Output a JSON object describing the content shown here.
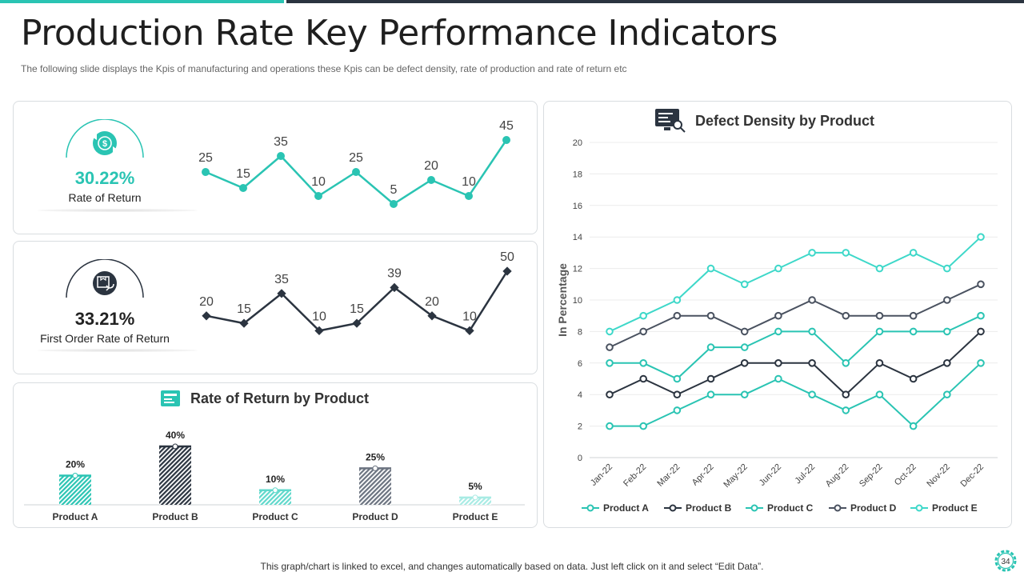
{
  "header": {
    "title": "Production Rate Key Performance Indicators",
    "subtitle": "The following  slide displays the Kpis of manufacturing  and operations these Kpis can be defect density, rate of production  and rate of return etc"
  },
  "kpis": [
    {
      "value": "30.22%",
      "label": "Rate of Return",
      "icon": "dollar-exchange-icon"
    },
    {
      "value": "33.21%",
      "label": "First Order Rate of Return",
      "icon": "box-return-icon"
    }
  ],
  "colors": {
    "teal": "#2ac4b3",
    "dark": "#2b3440",
    "grey": "#4a5260"
  },
  "chart_data": [
    {
      "type": "line",
      "title": "",
      "x": [
        1,
        2,
        3,
        4,
        5,
        6,
        7,
        8,
        9
      ],
      "series": [
        {
          "name": "Rate of Return",
          "values": [
            25,
            15,
            35,
            10,
            25,
            5,
            20,
            10,
            45
          ]
        }
      ],
      "labels": [
        "25",
        "15",
        "35",
        "10",
        "25",
        "5",
        "20",
        "10",
        "45"
      ]
    },
    {
      "type": "line",
      "title": "",
      "x": [
        1,
        2,
        3,
        4,
        5,
        6,
        7,
        8,
        9
      ],
      "series": [
        {
          "name": "First Order Rate of Return",
          "values": [
            20,
            15,
            35,
            10,
            15,
            39,
            20,
            10,
            50
          ]
        }
      ],
      "labels": [
        "20",
        "15",
        "35",
        "10",
        "15",
        "39",
        "20",
        "10",
        "50"
      ]
    },
    {
      "type": "bar",
      "title": "Rate of Return by Product",
      "categories": [
        "Product A",
        "Product B",
        "Product C",
        "Product D",
        "Product E"
      ],
      "values": [
        20,
        40,
        10,
        25,
        5
      ],
      "labels": [
        "20%",
        "40%",
        "10%",
        "25%",
        "5%"
      ],
      "ylim": [
        0,
        40
      ]
    },
    {
      "type": "line",
      "title": "Defect Density by Product",
      "ylabel": "In Percentage",
      "xlabel": "",
      "categories": [
        "Jan-22",
        "Feb-22",
        "Mar-22",
        "Apr-22",
        "May-22",
        "Jun-22",
        "Jul-22",
        "Aug-22",
        "Sep-22",
        "Oct-22",
        "Nov-22",
        "Dec-22"
      ],
      "yticks": [
        "0",
        "2",
        "4",
        "6",
        "8",
        "10",
        "12",
        "14",
        "16",
        "18",
        "20"
      ],
      "ylim": [
        0,
        20
      ],
      "legend": "bottom",
      "series": [
        {
          "name": "Product A",
          "color": "#2ac4b3",
          "values": [
            2,
            2,
            3,
            4,
            4,
            5,
            4,
            3,
            4,
            2,
            4,
            6
          ]
        },
        {
          "name": "Product B",
          "color": "#2b3440",
          "values": [
            4,
            5,
            4,
            5,
            6,
            6,
            6,
            4,
            6,
            5,
            6,
            8
          ]
        },
        {
          "name": "Product C",
          "color": "#2ac4b3",
          "values": [
            6,
            6,
            5,
            7,
            7,
            8,
            8,
            6,
            8,
            8,
            8,
            9
          ]
        },
        {
          "name": "Product D",
          "color": "#4a5260",
          "values": [
            7,
            8,
            9,
            9,
            8,
            9,
            10,
            9,
            9,
            9,
            10,
            11
          ]
        },
        {
          "name": "Product E",
          "color": "#3ed8c9",
          "values": [
            8,
            9,
            10,
            12,
            11,
            12,
            13,
            13,
            12,
            13,
            12,
            14
          ]
        }
      ]
    }
  ],
  "footer": {
    "note": "This graph/chart is linked to excel,  and changes automatically based on data. Just left click on it and select “Edit Data”.",
    "page": "34"
  }
}
